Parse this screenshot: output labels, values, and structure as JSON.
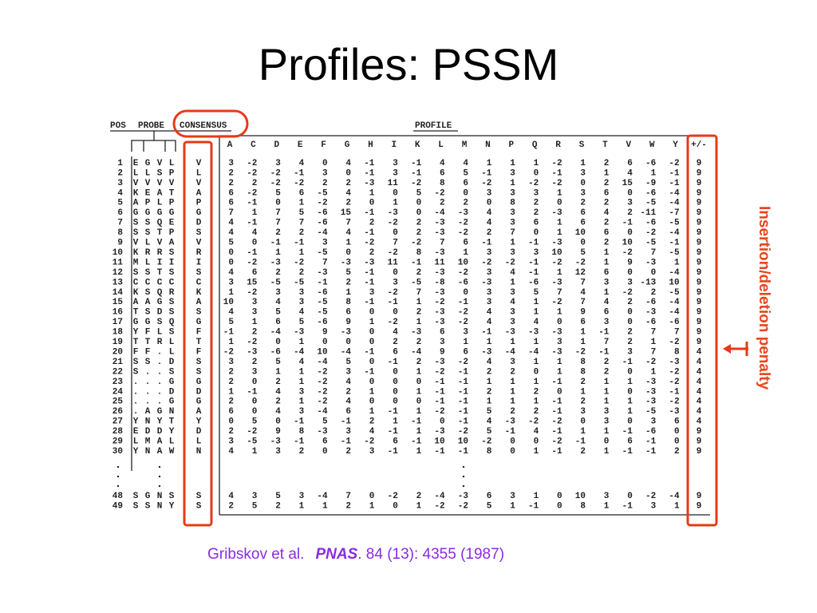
{
  "title": "Profiles: PSSM",
  "table": {
    "headers": {
      "pos": "POS",
      "probe": "PROBE",
      "consensus": "CONSENSUS",
      "profile": "PROFILE"
    },
    "columns": [
      "A",
      "C",
      "D",
      "E",
      "F",
      "G",
      "H",
      "I",
      "K",
      "L",
      "M",
      "N",
      "P",
      "Q",
      "R",
      "S",
      "T",
      "V",
      "W",
      "Y",
      "+/-"
    ],
    "rows": [
      {
        "pos": "1",
        "probe": [
          "E",
          "G",
          "V",
          "L"
        ],
        "consensus": "V",
        "scores": [
          3,
          -2,
          3,
          4,
          0,
          4,
          -1,
          3,
          -1,
          4,
          4,
          1,
          1,
          1,
          -2,
          1,
          2,
          6,
          -6,
          -2
        ],
        "penalty": 9
      },
      {
        "pos": "2",
        "probe": [
          "L",
          "L",
          "S",
          "P"
        ],
        "consensus": "L",
        "scores": [
          2,
          -2,
          -2,
          -1,
          3,
          0,
          -1,
          3,
          -1,
          6,
          5,
          -1,
          3,
          0,
          -1,
          3,
          1,
          4,
          1,
          -1
        ],
        "penalty": 9
      },
      {
        "pos": "3",
        "probe": [
          "V",
          "V",
          "V",
          "V"
        ],
        "consensus": "V",
        "scores": [
          2,
          2,
          -2,
          -2,
          2,
          2,
          -3,
          11,
          -2,
          8,
          6,
          -2,
          1,
          -2,
          -2,
          0,
          2,
          15,
          -9,
          -1
        ],
        "penalty": 9
      },
      {
        "pos": "4",
        "probe": [
          "K",
          "E",
          "A",
          "T"
        ],
        "consensus": "A",
        "scores": [
          6,
          -2,
          5,
          6,
          -5,
          4,
          1,
          0,
          5,
          -2,
          0,
          3,
          3,
          3,
          1,
          3,
          6,
          0,
          -6,
          -4
        ],
        "penalty": 9
      },
      {
        "pos": "5",
        "probe": [
          "A",
          "P",
          "L",
          "P"
        ],
        "consensus": "P",
        "scores": [
          6,
          -1,
          0,
          1,
          -2,
          2,
          0,
          1,
          0,
          2,
          2,
          0,
          8,
          2,
          0,
          2,
          2,
          3,
          -5,
          -4
        ],
        "penalty": 9
      },
      {
        "pos": "6",
        "probe": [
          "G",
          "G",
          "G",
          "G"
        ],
        "consensus": "G",
        "scores": [
          7,
          1,
          7,
          5,
          -6,
          15,
          -1,
          -3,
          0,
          -4,
          -3,
          4,
          3,
          2,
          -3,
          6,
          4,
          2,
          -11,
          -7
        ],
        "penalty": 9
      },
      {
        "pos": "7",
        "probe": [
          "S",
          "S",
          "Q",
          "E"
        ],
        "consensus": "D",
        "scores": [
          4,
          -1,
          7,
          7,
          -6,
          7,
          2,
          -2,
          2,
          -3,
          -2,
          4,
          3,
          6,
          1,
          6,
          2,
          -1,
          -6,
          -5
        ],
        "penalty": 9
      },
      {
        "pos": "8",
        "probe": [
          "S",
          "S",
          "T",
          "P"
        ],
        "consensus": "S",
        "scores": [
          4,
          4,
          2,
          2,
          -4,
          4,
          -1,
          0,
          2,
          -3,
          -2,
          2,
          7,
          0,
          1,
          10,
          6,
          0,
          -2,
          -4
        ],
        "penalty": 9
      },
      {
        "pos": "9",
        "probe": [
          "V",
          "L",
          "V",
          "A"
        ],
        "consensus": "V",
        "scores": [
          5,
          0,
          -1,
          -1,
          3,
          1,
          -2,
          7,
          -2,
          7,
          6,
          -1,
          1,
          -1,
          -3,
          0,
          2,
          10,
          -5,
          -1
        ],
        "penalty": 9
      },
      {
        "pos": "10",
        "probe": [
          "K",
          "R",
          "R",
          "S"
        ],
        "consensus": "R",
        "scores": [
          0,
          -1,
          1,
          1,
          -5,
          0,
          2,
          -2,
          8,
          -3,
          1,
          3,
          3,
          3,
          10,
          5,
          1,
          -2,
          7,
          -5
        ],
        "penalty": 9
      },
      {
        "pos": "11",
        "probe": [
          "M",
          "L",
          "I",
          "I"
        ],
        "consensus": "I",
        "scores": [
          0,
          -2,
          -3,
          -2,
          7,
          -3,
          -3,
          11,
          -1,
          11,
          10,
          -2,
          -2,
          -1,
          -2,
          -2,
          1,
          9,
          -3,
          1
        ],
        "penalty": 9
      },
      {
        "pos": "12",
        "probe": [
          "S",
          "S",
          "T",
          "S"
        ],
        "consensus": "S",
        "scores": [
          4,
          6,
          2,
          2,
          -3,
          5,
          -1,
          0,
          2,
          -3,
          -2,
          3,
          4,
          -1,
          1,
          12,
          6,
          0,
          0,
          -4
        ],
        "penalty": 9
      },
      {
        "pos": "13",
        "probe": [
          "C",
          "C",
          "C",
          "C"
        ],
        "consensus": "C",
        "scores": [
          3,
          15,
          -5,
          -5,
          -1,
          2,
          -1,
          3,
          -5,
          -8,
          -6,
          -3,
          1,
          -6,
          -3,
          7,
          3,
          3,
          -13,
          10
        ],
        "penalty": 9
      },
      {
        "pos": "14",
        "probe": [
          "K",
          "S",
          "Q",
          "R"
        ],
        "consensus": "K",
        "scores": [
          1,
          -2,
          3,
          3,
          -6,
          1,
          3,
          -2,
          7,
          -3,
          0,
          3,
          3,
          5,
          7,
          4,
          1,
          -2,
          2,
          -5
        ],
        "penalty": 9
      },
      {
        "pos": "15",
        "probe": [
          "A",
          "A",
          "G",
          "S"
        ],
        "consensus": "A",
        "scores": [
          10,
          3,
          4,
          3,
          -5,
          8,
          -1,
          -1,
          1,
          -2,
          -1,
          3,
          4,
          1,
          -2,
          7,
          4,
          2,
          -6,
          -4
        ],
        "penalty": 9
      },
      {
        "pos": "16",
        "probe": [
          "T",
          "S",
          "D",
          "S"
        ],
        "consensus": "S",
        "scores": [
          4,
          3,
          5,
          4,
          -5,
          6,
          0,
          0,
          2,
          -3,
          -2,
          4,
          3,
          1,
          1,
          9,
          6,
          0,
          -3,
          -4
        ],
        "penalty": 9
      },
      {
        "pos": "17",
        "probe": [
          "G",
          "G",
          "S",
          "Q"
        ],
        "consensus": "G",
        "scores": [
          5,
          1,
          6,
          5,
          -6,
          9,
          1,
          -2,
          1,
          -3,
          -2,
          4,
          3,
          4,
          0,
          6,
          3,
          0,
          -6,
          -6
        ],
        "penalty": 9
      },
      {
        "pos": "18",
        "probe": [
          "Y",
          "F",
          "L",
          "S"
        ],
        "consensus": "F",
        "scores": [
          -1,
          2,
          -4,
          -3,
          9,
          -3,
          0,
          4,
          -3,
          6,
          3,
          -1,
          -3,
          -3,
          -3,
          1,
          -1,
          2,
          7,
          7
        ],
        "penalty": 9
      },
      {
        "pos": "19",
        "probe": [
          "T",
          "T",
          "R",
          "L"
        ],
        "consensus": "T",
        "scores": [
          1,
          -2,
          0,
          1,
          0,
          0,
          0,
          2,
          2,
          3,
          1,
          1,
          1,
          1,
          3,
          1,
          7,
          2,
          1,
          -2
        ],
        "penalty": 9
      },
      {
        "pos": "20",
        "probe": [
          "F",
          "F",
          ".",
          "L"
        ],
        "consensus": "F",
        "scores": [
          -2,
          -3,
          -6,
          -4,
          10,
          -4,
          -1,
          6,
          -4,
          9,
          6,
          -3,
          -4,
          -4,
          -3,
          -2,
          -1,
          3,
          7,
          8
        ],
        "penalty": 4
      },
      {
        "pos": "21",
        "probe": [
          "S",
          "S",
          ".",
          "D"
        ],
        "consensus": "S",
        "scores": [
          3,
          2,
          5,
          4,
          -4,
          5,
          0,
          -1,
          2,
          -3,
          -2,
          4,
          3,
          1,
          1,
          8,
          2,
          -1,
          -2,
          -3
        ],
        "penalty": 4
      },
      {
        "pos": "22",
        "probe": [
          "S",
          ".",
          ".",
          "S"
        ],
        "consensus": "S",
        "scores": [
          2,
          3,
          1,
          1,
          -2,
          3,
          -1,
          0,
          1,
          -2,
          -1,
          2,
          2,
          0,
          1,
          8,
          2,
          0,
          1,
          -2
        ],
        "penalty": 4
      },
      {
        "pos": "23",
        "probe": [
          ".",
          ".",
          ".",
          "G"
        ],
        "consensus": "G",
        "scores": [
          2,
          0,
          2,
          1,
          -2,
          4,
          0,
          0,
          0,
          -1,
          -1,
          1,
          1,
          1,
          -1,
          2,
          1,
          1,
          -3,
          -2
        ],
        "penalty": 4
      },
      {
        "pos": "24",
        "probe": [
          ".",
          ".",
          ".",
          "D"
        ],
        "consensus": "D",
        "scores": [
          1,
          -1,
          4,
          3,
          -2,
          2,
          1,
          0,
          1,
          -1,
          -1,
          2,
          1,
          2,
          0,
          1,
          1,
          0,
          -3,
          -1
        ],
        "penalty": 4
      },
      {
        "pos": "25",
        "probe": [
          ".",
          ".",
          ".",
          "G"
        ],
        "consensus": "G",
        "scores": [
          2,
          0,
          2,
          1,
          -2,
          4,
          0,
          0,
          0,
          -1,
          -1,
          1,
          1,
          1,
          -1,
          2,
          1,
          1,
          -3,
          -2
        ],
        "penalty": 4
      },
      {
        "pos": "26",
        "probe": [
          ".",
          "A",
          "G",
          "N"
        ],
        "consensus": "A",
        "scores": [
          6,
          0,
          4,
          3,
          -4,
          6,
          1,
          -1,
          1,
          -2,
          -1,
          5,
          2,
          2,
          -1,
          3,
          3,
          1,
          -5,
          -3
        ],
        "penalty": 4
      },
      {
        "pos": "27",
        "probe": [
          "Y",
          "N",
          "Y",
          "T"
        ],
        "consensus": "Y",
        "scores": [
          0,
          5,
          0,
          -1,
          5,
          -1,
          2,
          1,
          -1,
          0,
          -1,
          4,
          -3,
          -2,
          -2,
          0,
          3,
          0,
          3,
          6
        ],
        "penalty": 4
      },
      {
        "pos": "28",
        "probe": [
          "E",
          "D",
          "D",
          "Y"
        ],
        "consensus": "D",
        "scores": [
          2,
          -2,
          9,
          8,
          -3,
          3,
          4,
          -1,
          1,
          -3,
          -2,
          5,
          -1,
          4,
          -1,
          1,
          1,
          -1,
          -6,
          0
        ],
        "penalty": 9
      },
      {
        "pos": "29",
        "probe": [
          "L",
          "M",
          "A",
          "L"
        ],
        "consensus": "L",
        "scores": [
          3,
          -5,
          -3,
          -1,
          6,
          -1,
          -2,
          6,
          -1,
          10,
          10,
          -2,
          0,
          0,
          -2,
          -1,
          0,
          6,
          -1,
          0
        ],
        "penalty": 9
      },
      {
        "pos": "30",
        "probe": [
          "Y",
          "N",
          "A",
          "W"
        ],
        "consensus": "N",
        "scores": [
          4,
          1,
          3,
          2,
          0,
          2,
          3,
          -1,
          1,
          -1,
          -1,
          8,
          0,
          1,
          -1,
          2,
          1,
          -1,
          -1,
          2
        ],
        "penalty": 9
      },
      {
        "pos": "48",
        "probe": [
          "S",
          "G",
          "N",
          "S"
        ],
        "consensus": "S",
        "scores": [
          4,
          3,
          5,
          3,
          -4,
          7,
          0,
          -2,
          2,
          -4,
          -3,
          6,
          3,
          1,
          0,
          10,
          3,
          0,
          -2,
          -4
        ],
        "penalty": 9
      },
      {
        "pos": "49",
        "probe": [
          "S",
          "S",
          "N",
          "Y"
        ],
        "consensus": "S",
        "scores": [
          2,
          5,
          2,
          1,
          1,
          2,
          1,
          0,
          1,
          -2,
          -2,
          5,
          1,
          -1,
          0,
          8,
          1,
          -1,
          3,
          1
        ],
        "penalty": 9
      }
    ]
  },
  "side_label": "Insertion/deletion penalty",
  "citation": {
    "authors": "Gribskov et al.",
    "journal": "PNAS",
    "details": ". 84 (13): 4355 (1987)"
  }
}
